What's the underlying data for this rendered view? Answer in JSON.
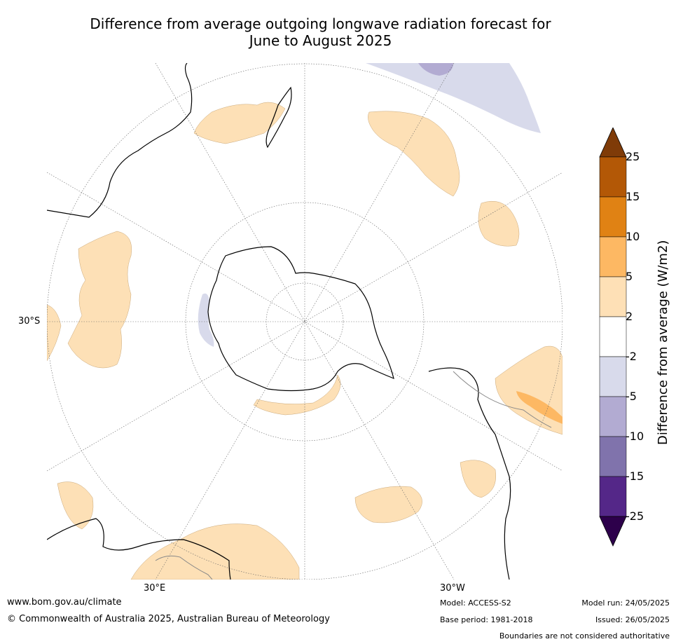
{
  "title_line1": "Difference from average outgoing longwave radiation forecast for",
  "title_line2": "June to August 2025",
  "map": {
    "lat_label": "30°S",
    "lon_labels": [
      "30°E",
      "30°W"
    ],
    "colors": {
      "land_outline": "#000000",
      "border": "#888888",
      "grid": "#666666",
      "pos_2_5": "#fde0b6",
      "pos_5_10": "#fdb863",
      "neg_2_5": "#d8daeb",
      "neg_5_10": "#b2abd2"
    }
  },
  "colorbar": {
    "title": "Difference from average (W/m2)",
    "ticks": [
      "25",
      "15",
      "10",
      "5",
      "2",
      "-2",
      "-5",
      "-10",
      "-15",
      "-25"
    ],
    "colors": [
      "#7f3b08",
      "#b35806",
      "#e08214",
      "#fdb863",
      "#fee0b6",
      "#ffffff",
      "#d8daeb",
      "#b2abd2",
      "#8073ac",
      "#542788",
      "#2d004b"
    ]
  },
  "footer": {
    "url": "www.bom.gov.au/climate",
    "copyright": "© Commonwealth of Australia 2025, Australian Bureau of Meteorology",
    "model": "Model: ACCESS-S2",
    "base_period": "Base period: 1981-2018",
    "model_run": "Model run: 24/05/2025",
    "issued": "Issued: 26/05/2025",
    "disclaimer": "Boundaries are not considered authoritative"
  }
}
